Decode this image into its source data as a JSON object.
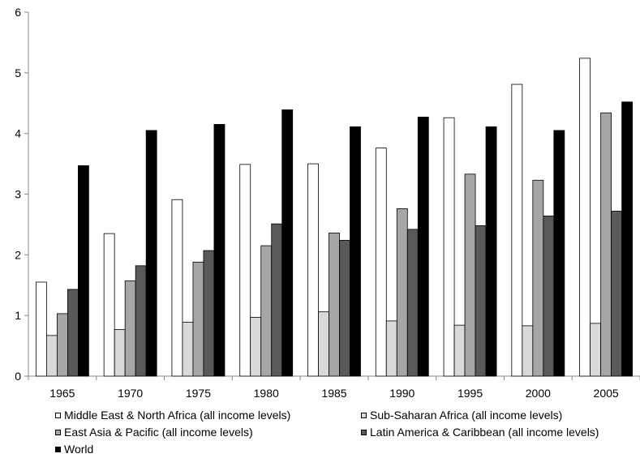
{
  "chart_data": {
    "type": "bar",
    "title": "",
    "xlabel": "",
    "ylabel": "",
    "categories": [
      "1965",
      "1970",
      "1975",
      "1980",
      "1985",
      "1990",
      "1995",
      "2000",
      "2005"
    ],
    "ylim": [
      0,
      6
    ],
    "yticks": [
      "0",
      "1",
      "2",
      "3",
      "4",
      "5",
      "6"
    ],
    "grid": false,
    "legend_position": "bottom",
    "series": [
      {
        "name": "Middle East & North Africa (all income levels)",
        "color": "#ffffff",
        "values": [
          1.55,
          2.35,
          2.91,
          3.49,
          3.5,
          3.76,
          4.26,
          4.81,
          5.24
        ]
      },
      {
        "name": "Sub-Saharan Africa (all income levels)",
        "color": "#d9d9d9",
        "values": [
          0.67,
          0.77,
          0.89,
          0.97,
          1.06,
          0.91,
          0.84,
          0.83,
          0.87
        ]
      },
      {
        "name": "East Asia & Pacific (all income levels)",
        "color": "#a6a6a6",
        "values": [
          1.03,
          1.57,
          1.88,
          2.15,
          2.36,
          2.76,
          3.33,
          3.23,
          4.34
        ]
      },
      {
        "name": "Latin America & Caribbean (all income levels)",
        "color": "#595959",
        "values": [
          1.43,
          1.82,
          2.07,
          2.51,
          2.24,
          2.42,
          2.48,
          2.64,
          2.72
        ]
      },
      {
        "name": "World",
        "color": "#000000",
        "values": [
          3.47,
          4.05,
          4.15,
          4.39,
          4.11,
          4.27,
          4.11,
          4.05,
          4.52
        ]
      }
    ]
  }
}
